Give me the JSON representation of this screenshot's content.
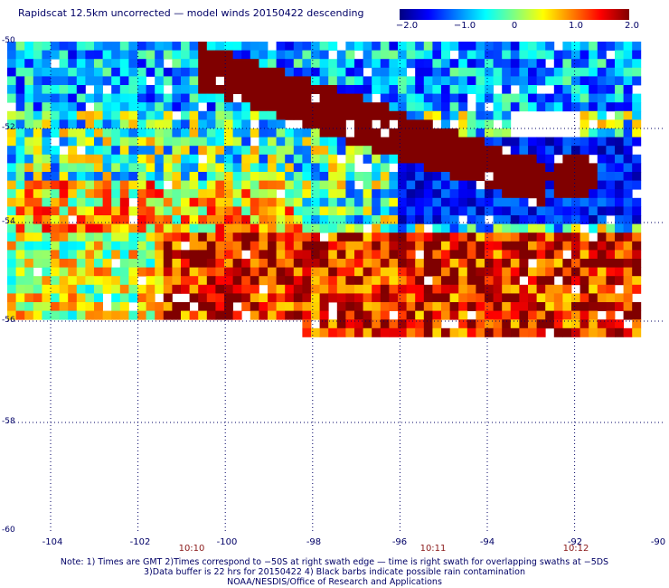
{
  "title": "Rapidscat 12.5km uncorrected — model winds 20150422 descending",
  "colorbar": {
    "labels": [
      "−2.0",
      "−1.0",
      "0",
      "1.0",
      "2.0"
    ],
    "stops": [
      "#000080",
      "#0000ff",
      "#0080ff",
      "#00ffff",
      "#80ff80",
      "#ffff00",
      "#ff8000",
      "#ff0000",
      "#800000"
    ]
  },
  "axes": {
    "lat_labels": [
      "-50",
      "-52",
      "-54",
      "-56",
      "-58",
      "-60"
    ],
    "lon_labels": [
      "-104",
      "-102",
      "-100",
      "-98",
      "-96",
      "-94",
      "-92",
      "-90"
    ]
  },
  "times": [
    "10:10",
    "10:11",
    "10:12"
  ],
  "notes": {
    "line1": "Note: 1) Times are GMT 2)Times correspond to −50S at right swath edge — time is right swath for overlapping swaths at −5DS",
    "line2": "3)Data buffer is 22 hrs for 20150422 4) Black barbs indicate possible rain contamination",
    "line3": "NOAA/NESDIS/Office of Research and Applications"
  },
  "colors": {
    "text": "#000066",
    "time": "#8b1a1a",
    "grid": "#000066"
  }
}
